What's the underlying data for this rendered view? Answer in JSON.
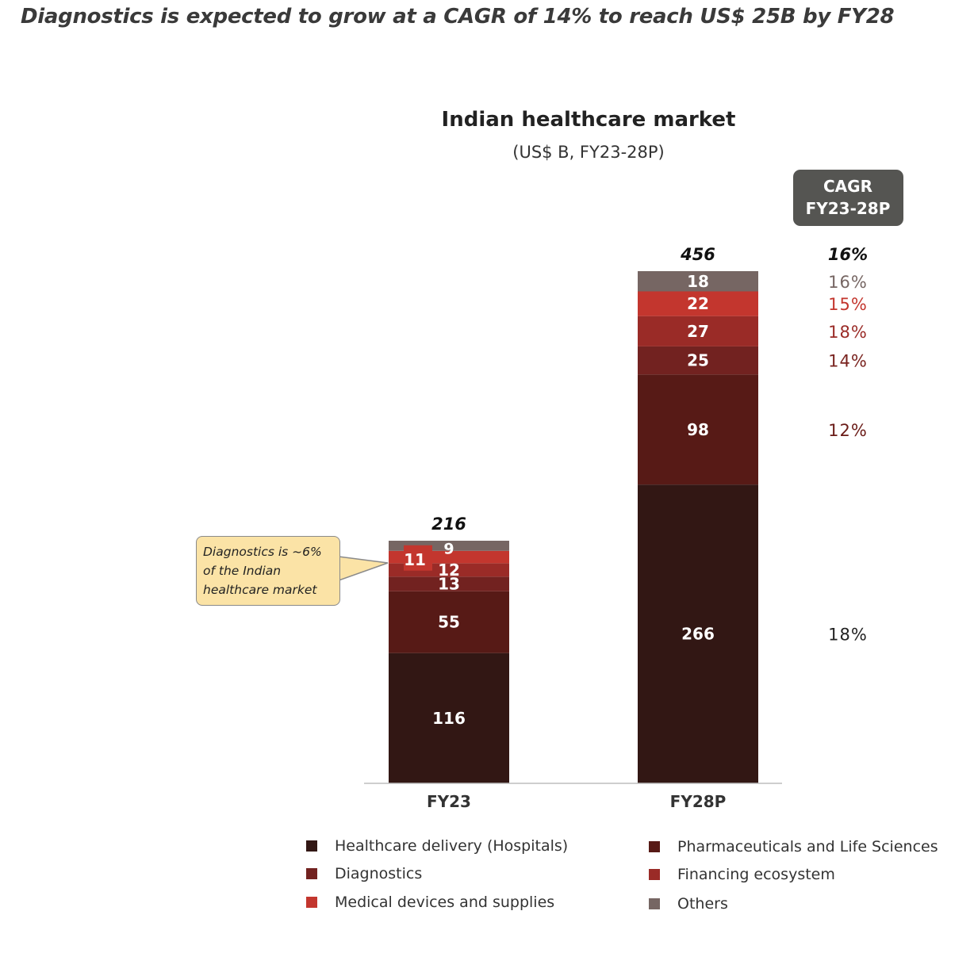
{
  "headline": "Diagnostics is expected to grow at a CAGR of 14% to reach US$ 25B by FY28",
  "chart_data": {
    "type": "bar",
    "stacked": true,
    "title": "Indian healthcare market",
    "subtitle": "(US$ B, FY23-28P)",
    "categories": [
      "FY23",
      "FY28P"
    ],
    "totals": [
      "216",
      "456"
    ],
    "series": [
      {
        "name": "Healthcare delivery (Hospitals)",
        "values": [
          116,
          266
        ],
        "color": "#321714",
        "cagr": "18%"
      },
      {
        "name": "Pharmaceuticals and Life Sciences",
        "values": [
          55,
          98
        ],
        "color": "#571a16",
        "cagr": "12%"
      },
      {
        "name": "Diagnostics",
        "values": [
          13,
          25
        ],
        "color": "#722220",
        "cagr": "14%"
      },
      {
        "name": "Financing ecosystem",
        "values": [
          12,
          27
        ],
        "color": "#9a2b27",
        "cagr": "18%"
      },
      {
        "name": "Medical devices and supplies",
        "values": [
          11,
          22
        ],
        "color": "#c3362e",
        "cagr": "15%"
      },
      {
        "name": "Others",
        "values": [
          9,
          18
        ],
        "color": "#766663",
        "cagr": "16%"
      }
    ],
    "cagr_header": [
      "CAGR",
      "FY23-28P"
    ],
    "cagr_total": "16%",
    "legend_position": "bottom"
  },
  "callout": {
    "text_lines": [
      "Diagnostics is ~6%",
      "of the Indian",
      "healthcare market"
    ]
  },
  "colors": {
    "cagr_box": "#555552",
    "callout_bg": "#fbe3a6"
  }
}
